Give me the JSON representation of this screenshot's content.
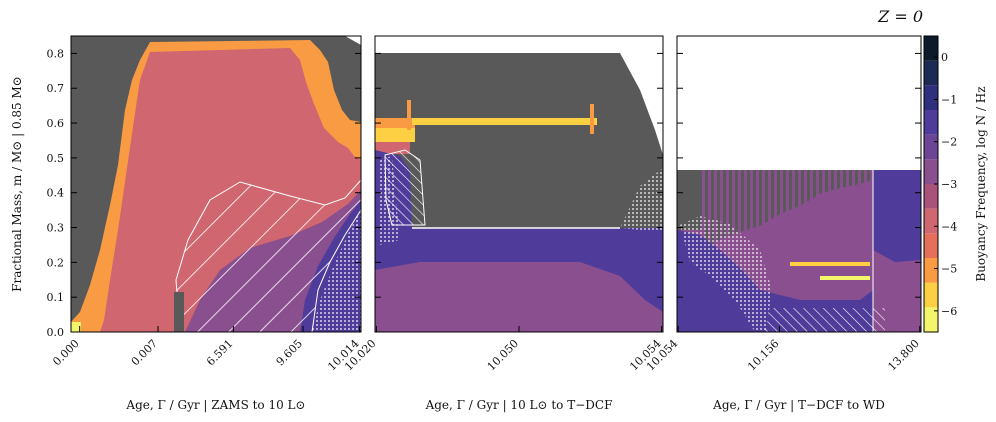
{
  "figure_title": "Z = 0",
  "colors": {
    "grey": "#595959",
    "salmon": "#cf6670",
    "orange": "#f99b43",
    "purple": "#8a4f8f",
    "indigo": "#4f3b9a",
    "yellow": "#fcd042",
    "pale": "#f3f56a",
    "white": "#ffffff"
  },
  "chart_data": {
    "type": "heatmap",
    "title": "Z = 0",
    "ylabel": "Fractional Mass, m / M⊙ | 0.85 M⊙",
    "ylim": [
      0,
      0.85
    ],
    "yticks": [
      0.0,
      0.1,
      0.2,
      0.3,
      0.4,
      0.5,
      0.6,
      0.7,
      0.8
    ],
    "ytick_labels": [
      "0.0",
      "0.1",
      "0.2",
      "0.3",
      "0.4",
      "0.5",
      "0.6",
      "0.7",
      "0.8"
    ],
    "panels": [
      {
        "xlabel": "Age, Γ / Gyr | ZAMS to 10 L⊙",
        "xtick_labels": [
          "0.000",
          "0.007",
          "6.591",
          "9.605",
          "10.014"
        ]
      },
      {
        "xlabel": "Age, Γ / Gyr | 10 L⊙ to T−DCF",
        "xtick_labels": [
          "10.020",
          "10.050",
          "10.054"
        ]
      },
      {
        "xlabel": "Age, Γ / Gyr | T−DCF to WD",
        "xtick_labels": [
          "10.054",
          "10.156",
          "13.800"
        ]
      }
    ],
    "colorbar": {
      "label": "Buoyancy Frequency, log N / Hz",
      "range": [
        -6.5,
        0.5
      ],
      "ticks": [
        0,
        -1,
        -2,
        -3,
        -4,
        -5,
        -6
      ],
      "tick_labels": [
        "0",
        "−1",
        "−2",
        "−3",
        "−4",
        "−5",
        "−6"
      ],
      "colors": [
        "#f3f56a",
        "#fcd042",
        "#f99b43",
        "#e66f5c",
        "#cf6670",
        "#a9527a",
        "#8a4f8f",
        "#6d4596",
        "#4f3b9a",
        "#2f2f7e",
        "#1c2a56",
        "#0d1a2a"
      ]
    }
  }
}
